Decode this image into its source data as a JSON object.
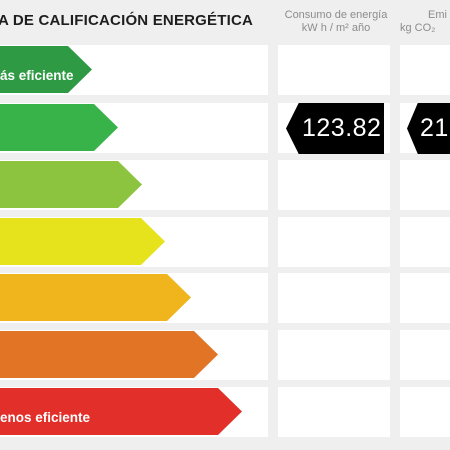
{
  "title": "A DE CALIFICACIÓN ENERGÉTICA",
  "columns": {
    "consumo": {
      "line1": "Consumo de energía",
      "line2": "kW h / m² año"
    },
    "emisiones": {
      "line1": "Emi",
      "line2": "kg CO₂"
    }
  },
  "ratings": [
    {
      "label": "ás eficiente",
      "color": "#2e9a44"
    },
    {
      "label": "",
      "color": "#37b34a"
    },
    {
      "label": "",
      "color": "#8cc43f"
    },
    {
      "label": "",
      "color": "#e6e21c"
    },
    {
      "label": "",
      "color": "#f0b41d"
    },
    {
      "label": "",
      "color": "#e27426"
    },
    {
      "label": "enos eficiente",
      "color": "#e32f2a"
    }
  ],
  "consumo_value": "123.82",
  "emisiones_value": "21",
  "indicator_rating_index": 1
}
